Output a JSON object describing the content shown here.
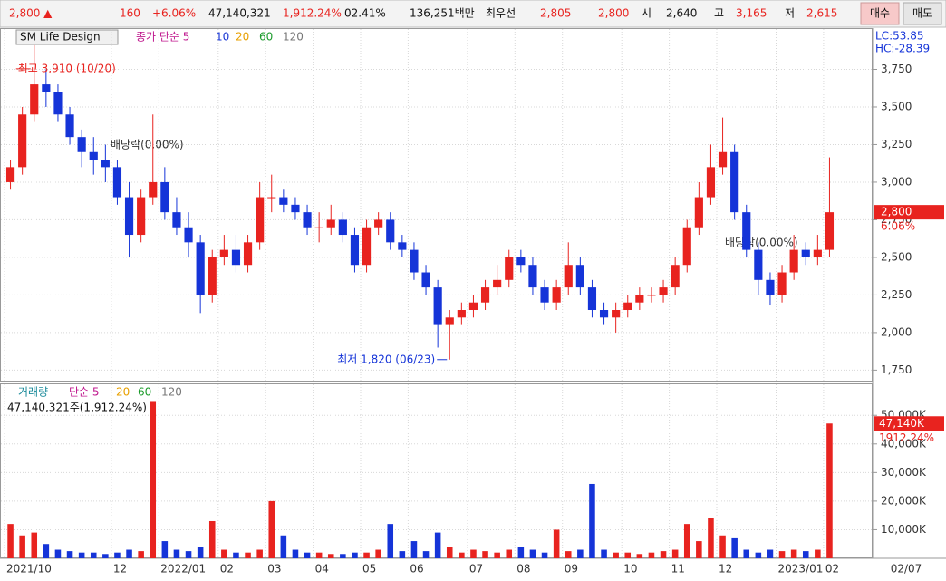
{
  "top_bar": {
    "price": "2,800 ▲",
    "change": "160",
    "change_pct": "+6.06%",
    "volume": "47,140,321",
    "volume_pct": "1,912.24%",
    "turnover": "02.41%",
    "amount": "136,251백만",
    "best_label": "최우선",
    "ask": "2,805",
    "bid": "2,800",
    "open_label": "시",
    "open": "2,640",
    "high_label": "고",
    "high": "3,165",
    "low_label": "저",
    "low": "2,615",
    "buy": "매수",
    "sell": "매도"
  },
  "chart_data": {
    "type": "candlestick",
    "title": "SM Life Design",
    "legend": {
      "label": "종가 단순 5",
      "periods": [
        "10",
        "20",
        "60",
        "120"
      ]
    },
    "lc": "LC:53.85",
    "hc": "HC:-28.39",
    "high_note": "최고 3,910 (10/20)",
    "low_note": "최저 1,820 (06/23)",
    "dividend_notes": [
      "배당락(0.00%)",
      "배당락(0.00%)"
    ],
    "last_price_label": "2,800",
    "last_change_label": "6.06%",
    "end_date_label": "02/07",
    "up_color": "#e8231f",
    "down_color": "#1534d8",
    "categories": [
      "2021/10",
      null,
      null,
      null,
      null,
      null,
      null,
      null,
      null,
      "12",
      null,
      null,
      null,
      "2022/01",
      null,
      null,
      null,
      null,
      "02",
      null,
      null,
      null,
      "03",
      null,
      null,
      null,
      "04",
      null,
      null,
      null,
      "05",
      null,
      null,
      null,
      "06",
      null,
      null,
      null,
      null,
      "07",
      null,
      null,
      null,
      "08",
      null,
      null,
      null,
      "09",
      null,
      null,
      null,
      null,
      "10",
      null,
      null,
      null,
      "11",
      null,
      null,
      null,
      "12",
      null,
      null,
      null,
      null,
      "2023/01",
      null,
      null,
      null,
      "02"
    ],
    "open": [
      3000,
      3100,
      3450,
      3650,
      3600,
      3450,
      3300,
      3200,
      3150,
      3100,
      2900,
      2650,
      2900,
      3000,
      2800,
      2700,
      2600,
      2250,
      2500,
      2550,
      2450,
      2600,
      2900,
      2900,
      2850,
      2800,
      2700,
      2700,
      2750,
      2650,
      2450,
      2700,
      2750,
      2600,
      2550,
      2400,
      2300,
      2050,
      2100,
      2150,
      2200,
      2300,
      2350,
      2500,
      2450,
      2300,
      2200,
      2300,
      2450,
      2300,
      2150,
      2100,
      2150,
      2200,
      2250,
      2250,
      2300,
      2450,
      2700,
      2900,
      3100,
      3200,
      2800,
      2550,
      2350,
      2250,
      2400,
      2550,
      2500,
      2550
    ],
    "high": [
      3150,
      3500,
      3910,
      3750,
      3650,
      3500,
      3350,
      3300,
      3250,
      3150,
      3000,
      2950,
      3450,
      3100,
      2900,
      2800,
      2650,
      2550,
      2650,
      2650,
      2650,
      3000,
      3050,
      2950,
      2900,
      2850,
      2800,
      2850,
      2800,
      2700,
      2750,
      2800,
      2800,
      2650,
      2600,
      2450,
      2350,
      2150,
      2200,
      2250,
      2350,
      2450,
      2550,
      2550,
      2500,
      2350,
      2350,
      2600,
      2500,
      2350,
      2200,
      2200,
      2250,
      2300,
      2300,
      2350,
      2500,
      2750,
      3000,
      3250,
      3430,
      3250,
      2850,
      2600,
      2400,
      2450,
      2650,
      2600,
      2650,
      3165
    ],
    "low": [
      2950,
      3050,
      3400,
      3500,
      3400,
      3250,
      3100,
      3050,
      3000,
      2850,
      2500,
      2600,
      2850,
      2750,
      2650,
      2500,
      2130,
      2200,
      2450,
      2400,
      2400,
      2550,
      2800,
      2800,
      2750,
      2650,
      2600,
      2650,
      2600,
      2400,
      2400,
      2650,
      2550,
      2500,
      2350,
      2250,
      1900,
      1820,
      2050,
      2100,
      2150,
      2250,
      2300,
      2400,
      2250,
      2150,
      2150,
      2250,
      2250,
      2100,
      2050,
      2000,
      2100,
      2150,
      2200,
      2200,
      2250,
      2400,
      2650,
      2850,
      3050,
      2750,
      2500,
      2250,
      2180,
      2200,
      2350,
      2450,
      2450,
      2500
    ],
    "close": [
      3100,
      3450,
      3650,
      3600,
      3450,
      3300,
      3200,
      3150,
      3100,
      2900,
      2650,
      2900,
      3000,
      2800,
      2700,
      2600,
      2250,
      2500,
      2550,
      2450,
      2600,
      2900,
      2900,
      2850,
      2800,
      2700,
      2700,
      2750,
      2650,
      2450,
      2700,
      2750,
      2600,
      2550,
      2400,
      2300,
      2050,
      2100,
      2150,
      2200,
      2300,
      2350,
      2500,
      2450,
      2300,
      2200,
      2300,
      2450,
      2300,
      2150,
      2100,
      2150,
      2200,
      2250,
      2250,
      2300,
      2450,
      2700,
      2900,
      3100,
      3200,
      2800,
      2550,
      2350,
      2250,
      2400,
      2550,
      2500,
      2550,
      2800
    ],
    "ylim": [
      1680,
      4000
    ],
    "yticks": [
      {
        "value": 1750,
        "label": "1,750"
      },
      {
        "value": 2000,
        "label": "2,000"
      },
      {
        "value": 2250,
        "label": "2,250"
      },
      {
        "value": 2500,
        "label": "2,500"
      },
      {
        "value": 2750,
        "label": "2,750"
      },
      {
        "value": 3000,
        "label": "3,000"
      },
      {
        "value": 3250,
        "label": "3,250"
      },
      {
        "value": 3500,
        "label": "3,500"
      },
      {
        "value": 3750,
        "label": "3,750"
      }
    ],
    "volume": {
      "type": "bar",
      "title": "거래량",
      "legend": {
        "label": "단순 5",
        "periods": [
          "20",
          "60",
          "120"
        ]
      },
      "summary": "47,140,321주(1,912.24%)",
      "last_label": "47,140K",
      "last_pct_label": "1912.24%",
      "values": [
        12000,
        8000,
        9000,
        5000,
        3000,
        2500,
        2000,
        2000,
        1500,
        2000,
        3000,
        2500,
        55000,
        6000,
        3000,
        2500,
        4000,
        13000,
        3000,
        2000,
        2000,
        3000,
        20000,
        8000,
        3000,
        2000,
        2000,
        1500,
        1500,
        2000,
        2000,
        3000,
        12000,
        2500,
        6000,
        2500,
        9000,
        4000,
        2000,
        3000,
        2500,
        2000,
        3000,
        4000,
        3000,
        2000,
        10000,
        2500,
        3000,
        26000,
        3000,
        2000,
        2000,
        1500,
        2000,
        2500,
        3000,
        12000,
        6000,
        14000,
        8000,
        7000,
        3000,
        2000,
        3000,
        2500,
        3000,
        2500,
        3000,
        47140.321
      ],
      "ylim": [
        0,
        58000
      ],
      "yticks": [
        {
          "value": 10000,
          "label": "10,000K"
        },
        {
          "value": 20000,
          "label": "20,000K"
        },
        {
          "value": 30000,
          "label": "30,000K"
        },
        {
          "value": 40000,
          "label": "40,000K"
        },
        {
          "value": 50000,
          "label": "50,000K"
        }
      ]
    }
  }
}
